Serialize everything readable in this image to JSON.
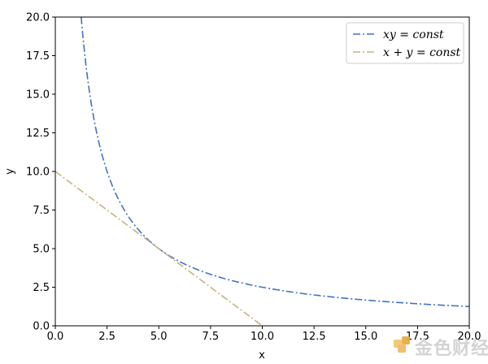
{
  "chart_data": {
    "type": "line",
    "xlabel": "x",
    "ylabel": "y",
    "xlim": [
      0,
      20
    ],
    "ylim": [
      0,
      20
    ],
    "xticks": [
      0,
      2.5,
      5,
      7.5,
      10,
      12.5,
      15,
      17.5,
      20
    ],
    "yticks": [
      0,
      2.5,
      5,
      7.5,
      10,
      12.5,
      15,
      17.5,
      20
    ],
    "tick_labels_x": [
      "0.0",
      "2.5",
      "5.0",
      "7.5",
      "10.0",
      "12.5",
      "15.0",
      "17.5",
      "20.0"
    ],
    "tick_labels_y": [
      "0.0",
      "2.5",
      "5.0",
      "7.5",
      "10.0",
      "12.5",
      "15.0",
      "17.5",
      "20.0"
    ],
    "grid": false,
    "legend_position": "top-right",
    "series": [
      {
        "name": "xy = const",
        "legend_label": "xy = const",
        "color": "#4472c4",
        "linestyle": "dash-dot",
        "x": [
          1.25,
          1.5,
          1.75,
          2,
          2.5,
          3,
          3.5,
          4,
          4.5,
          5,
          6,
          7,
          8,
          9,
          10,
          12,
          14,
          16,
          18,
          20
        ],
        "y": [
          20,
          16.67,
          14.29,
          12.5,
          10,
          8.33,
          7.14,
          6.25,
          5.56,
          5,
          4.17,
          3.57,
          3.13,
          2.78,
          2.5,
          2.08,
          1.79,
          1.56,
          1.39,
          1.25
        ]
      },
      {
        "name": "x + y = const",
        "legend_label": "x + y = const",
        "color": "#c5b47f",
        "linestyle": "dash-dot",
        "x": [
          0,
          10
        ],
        "y": [
          10,
          0
        ]
      }
    ]
  },
  "watermark": {
    "text": "金色财经",
    "icon": "golden-block-logo-icon"
  }
}
